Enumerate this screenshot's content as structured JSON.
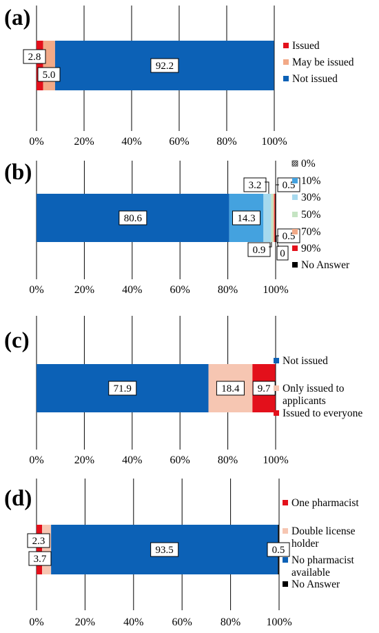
{
  "chart_data": [
    {
      "type": "bar",
      "orientation": "horizontal",
      "stacked": true,
      "panel_label": "(a)",
      "x_ticks": [
        "0%",
        "20%",
        "40%",
        "60%",
        "80%",
        "100%"
      ],
      "xlim": [
        0,
        100
      ],
      "grid": true,
      "legend_position": "right",
      "series": [
        {
          "name": "Issued",
          "value": 2.8,
          "color": "#e3101b",
          "label": "2.8"
        },
        {
          "name": "May be issued",
          "value": 5.0,
          "color": "#f2a987",
          "label": "5.0"
        },
        {
          "name": "Not issued",
          "value": 92.2,
          "color": "#0c61b6",
          "label": "92.2"
        }
      ]
    },
    {
      "type": "bar",
      "orientation": "horizontal",
      "stacked": true,
      "panel_label": "(b)",
      "x_ticks": [
        "0%",
        "20%",
        "40%",
        "60%",
        "80%",
        "100%"
      ],
      "xlim": [
        0,
        100
      ],
      "grid": true,
      "legend_position": "right",
      "series": [
        {
          "name": "0%",
          "value": 80.6,
          "color": "#0c61b6",
          "label": "80.6",
          "legend_pattern": "hatch"
        },
        {
          "name": "10%",
          "value": 14.3,
          "color": "#44a2df",
          "label": "14.3"
        },
        {
          "name": "30%",
          "value": 3.2,
          "color": "#a6d9ee",
          "label": "3.2"
        },
        {
          "name": "50%",
          "value": 0.9,
          "color": "#c5e4c3",
          "label": "0.9"
        },
        {
          "name": "70%",
          "value": 0.5,
          "color": "#f2a987",
          "label": "0.5"
        },
        {
          "name": "90%",
          "value": 0.5,
          "color": "#e3101b",
          "label": "0.5"
        },
        {
          "name": "No Answer",
          "value": 0,
          "color": "#000000",
          "label": "0"
        }
      ],
      "legend_colors": {
        "0%": "#0c61b6",
        "10%": "#44a2df",
        "30%": "#a6d9ee",
        "50%": "#c5e4c3",
        "70%": "#f2a987",
        "90%": "#e3101b",
        "No Answer": "#000000"
      }
    },
    {
      "type": "bar",
      "orientation": "horizontal",
      "stacked": true,
      "panel_label": "(c)",
      "x_ticks": [
        "0%",
        "20%",
        "40%",
        "60%",
        "80%",
        "100%"
      ],
      "xlim": [
        0,
        100
      ],
      "grid": true,
      "legend_position": "right",
      "series": [
        {
          "name": "Not issued",
          "value": 71.9,
          "color": "#0c61b6",
          "label": "71.9"
        },
        {
          "name": "Only issued to applicants",
          "value": 18.4,
          "color": "#f6c6b2",
          "label": "18.4"
        },
        {
          "name": "Issued to everyone",
          "value": 9.7,
          "color": "#e3101b",
          "label": "9.7"
        }
      ]
    },
    {
      "type": "bar",
      "orientation": "horizontal",
      "stacked": true,
      "panel_label": "(d)",
      "x_ticks": [
        "0%",
        "20%",
        "40%",
        "60%",
        "80%",
        "100%"
      ],
      "xlim": [
        0,
        100
      ],
      "grid": true,
      "legend_position": "right",
      "series": [
        {
          "name": "One pharmacist",
          "value": 2.3,
          "color": "#e3101b",
          "label": "2.3"
        },
        {
          "name": "Double license holder",
          "value": 3.7,
          "color": "#f6c6b2",
          "label": "3.7"
        },
        {
          "name": "No pharmacist available",
          "value": 93.5,
          "color": "#0c61b6",
          "label": "93.5"
        },
        {
          "name": "No Answer",
          "value": 0.5,
          "color": "#000000",
          "label": "0.5"
        }
      ]
    }
  ]
}
